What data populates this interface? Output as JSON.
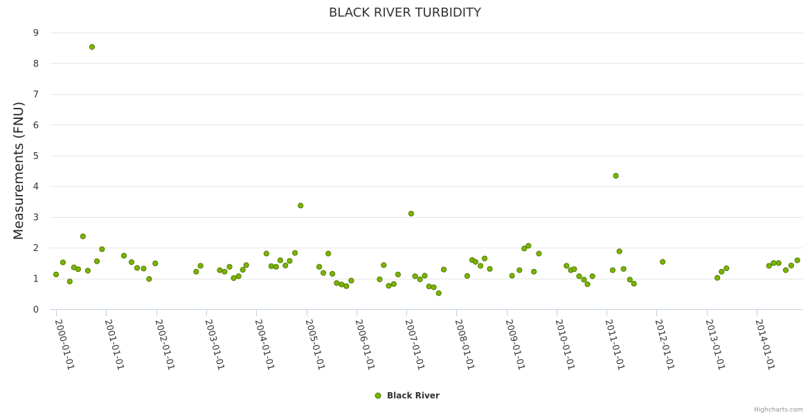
{
  "chart_data": {
    "type": "scatter",
    "title": "BLACK RIVER TURBIDITY",
    "xlabel": "",
    "ylabel": "Measurements (FNU)",
    "ylim": [
      0,
      9
    ],
    "yticks": [
      "0",
      "1",
      "2",
      "3",
      "4",
      "5",
      "6",
      "7",
      "8",
      "9"
    ],
    "xlim": [
      "2000-01-01",
      "2014-12-31"
    ],
    "xticks": [
      "2000-01-01",
      "2001-01-01",
      "2002-01-01",
      "2003-01-01",
      "2004-01-01",
      "2005-01-01",
      "2006-01-01",
      "2007-01-01",
      "2008-01-01",
      "2009-01-01",
      "2010-01-01",
      "2011-01-01",
      "2012-01-01",
      "2013-01-01",
      "2014-01-01"
    ],
    "grid": true,
    "series": [
      {
        "name": "Black River",
        "color": "#7cb400",
        "edge_color": "#4d7a00",
        "points": [
          [
            "2000-01-01",
            1.13
          ],
          [
            "2000-02-20",
            1.52
          ],
          [
            "2000-04-10",
            0.9
          ],
          [
            "2000-05-10",
            1.36
          ],
          [
            "2000-06-10",
            1.3
          ],
          [
            "2000-07-15",
            2.37
          ],
          [
            "2000-08-20",
            1.25
          ],
          [
            "2000-09-20",
            8.53
          ],
          [
            "2000-10-25",
            1.56
          ],
          [
            "2000-12-01",
            1.95
          ],
          [
            "2001-05-10",
            1.74
          ],
          [
            "2001-07-05",
            1.53
          ],
          [
            "2001-08-15",
            1.34
          ],
          [
            "2001-10-01",
            1.32
          ],
          [
            "2001-11-10",
            0.98
          ],
          [
            "2001-12-25",
            1.49
          ],
          [
            "2002-10-20",
            1.22
          ],
          [
            "2002-11-20",
            1.41
          ],
          [
            "2003-04-10",
            1.27
          ],
          [
            "2003-05-15",
            1.22
          ],
          [
            "2003-06-20",
            1.38
          ],
          [
            "2003-07-20",
            1.01
          ],
          [
            "2003-08-25",
            1.07
          ],
          [
            "2003-09-25",
            1.28
          ],
          [
            "2003-10-20",
            1.43
          ],
          [
            "2004-03-15",
            1.81
          ],
          [
            "2004-04-20",
            1.4
          ],
          [
            "2004-05-25",
            1.38
          ],
          [
            "2004-06-25",
            1.59
          ],
          [
            "2004-08-01",
            1.42
          ],
          [
            "2004-09-01",
            1.57
          ],
          [
            "2004-10-10",
            1.83
          ],
          [
            "2004-11-20",
            3.37
          ],
          [
            "2005-04-05",
            1.38
          ],
          [
            "2005-05-05",
            1.18
          ],
          [
            "2005-06-10",
            1.81
          ],
          [
            "2005-07-10",
            1.15
          ],
          [
            "2005-08-10",
            0.85
          ],
          [
            "2005-09-15",
            0.8
          ],
          [
            "2005-10-20",
            0.75
          ],
          [
            "2005-11-25",
            0.93
          ],
          [
            "2006-06-20",
            0.97
          ],
          [
            "2006-07-20",
            1.43
          ],
          [
            "2006-08-25",
            0.76
          ],
          [
            "2006-10-01",
            0.82
          ],
          [
            "2006-11-01",
            1.13
          ],
          [
            "2007-02-05",
            3.11
          ],
          [
            "2007-03-05",
            1.07
          ],
          [
            "2007-04-10",
            0.97
          ],
          [
            "2007-05-15",
            1.09
          ],
          [
            "2007-06-15",
            0.74
          ],
          [
            "2007-07-20",
            0.71
          ],
          [
            "2007-08-25",
            0.52
          ],
          [
            "2007-10-01",
            1.29
          ],
          [
            "2008-03-20",
            1.08
          ],
          [
            "2008-04-25",
            1.6
          ],
          [
            "2008-05-20",
            1.54
          ],
          [
            "2008-06-25",
            1.41
          ],
          [
            "2008-07-25",
            1.65
          ],
          [
            "2008-09-01",
            1.31
          ],
          [
            "2009-02-10",
            1.09
          ],
          [
            "2009-04-05",
            1.27
          ],
          [
            "2009-05-10",
            1.97
          ],
          [
            "2009-06-10",
            2.06
          ],
          [
            "2009-07-20",
            1.22
          ],
          [
            "2009-08-25",
            1.81
          ],
          [
            "2010-03-15",
            1.41
          ],
          [
            "2010-04-15",
            1.27
          ],
          [
            "2010-05-10",
            1.3
          ],
          [
            "2010-06-15",
            1.07
          ],
          [
            "2010-07-20",
            0.96
          ],
          [
            "2010-08-15",
            0.81
          ],
          [
            "2010-09-20",
            1.07
          ],
          [
            "2011-02-15",
            1.27
          ],
          [
            "2011-03-10",
            4.34
          ],
          [
            "2011-04-05",
            1.88
          ],
          [
            "2011-05-05",
            1.31
          ],
          [
            "2011-06-20",
            0.96
          ],
          [
            "2011-07-20",
            0.83
          ],
          [
            "2012-02-15",
            1.54
          ],
          [
            "2013-03-20",
            1.02
          ],
          [
            "2013-04-20",
            1.22
          ],
          [
            "2013-05-25",
            1.33
          ],
          [
            "2014-04-01",
            1.41
          ],
          [
            "2014-05-05",
            1.5
          ],
          [
            "2014-06-10",
            1.5
          ],
          [
            "2014-08-01",
            1.27
          ],
          [
            "2014-09-10",
            1.42
          ],
          [
            "2014-10-25",
            1.59
          ]
        ]
      }
    ],
    "legend": {
      "position": "bottom-center"
    },
    "credits": "Highcharts.com"
  }
}
